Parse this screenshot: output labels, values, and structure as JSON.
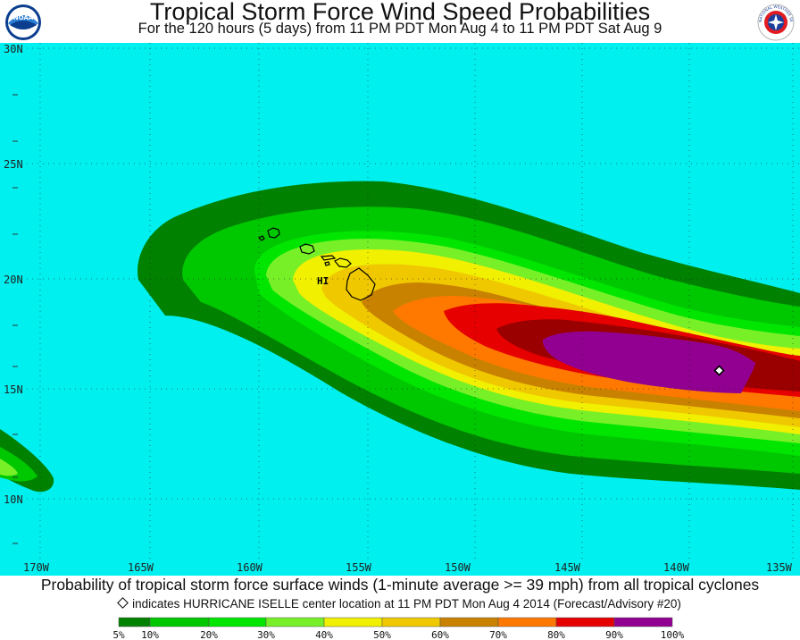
{
  "header": {
    "title": "Tropical Storm Force Wind Speed Probabilities",
    "subtitle": "For the 120 hours (5 days) from 11 PM PDT Mon Aug 4 to 11 PM PDT Sat Aug 9",
    "left_logo_text": "NOAA",
    "right_logo_text": "NATIONAL WEATHER SERVICE"
  },
  "map": {
    "background_color": "#00f0f0",
    "land_label": "HI",
    "longitude_labels": [
      "170W",
      "165W",
      "160W",
      "155W",
      "150W",
      "145W",
      "140W",
      "135W"
    ],
    "latitude_labels": [
      "30N",
      "25N",
      "20N",
      "15N",
      "10N"
    ],
    "storm_marker": "storm-center-diamond"
  },
  "footer": {
    "description": "Probability of tropical storm force surface winds (1-minute average >= 39 mph) from all tropical cyclones",
    "marker_note": "indicates HURRICANE ISELLE center location at 11 PM PDT Mon Aug 4 2014 (Forecast/Advisory #20)"
  },
  "legend": {
    "labels": [
      "5%",
      "10%",
      "20%",
      "30%",
      "40%",
      "50%",
      "60%",
      "70%",
      "80%",
      "90%",
      "100%"
    ],
    "colors": [
      "#008200",
      "#00c800",
      "#00e600",
      "#78f028",
      "#f0f000",
      "#f0c800",
      "#c88200",
      "#ff7800",
      "#e60000",
      "#9b0000",
      "#910091"
    ]
  }
}
